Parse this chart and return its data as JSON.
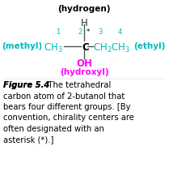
{
  "bg_color": "#ffffff",
  "hydrogen_label": "(hydrogen)",
  "hydrogen_color": "#000000",
  "methyl_label": "(methyl)",
  "methyl_color": "#00bbbb",
  "ethyl_label": "(ethyl)",
  "ethyl_color": "#00bbbb",
  "hydroxyl_label": "(hydroxyl)",
  "hydroxyl_color": "#ff00ff",
  "h_atom": "H",
  "oh_label": "OH",
  "oh_color": "#ff00ff",
  "structure_color": "#00bbbb",
  "c_color": "#000000",
  "num_color": "#00bbbb",
  "asterisk_color": "#000000",
  "fig_color": "#000000",
  "fig_fontsize": 7.2,
  "caption_text": "The tetrahedral carbon atom of 2-butanol that bears four different groups. [By convention, chirality centers are often designated with an asterisk (*).] "
}
